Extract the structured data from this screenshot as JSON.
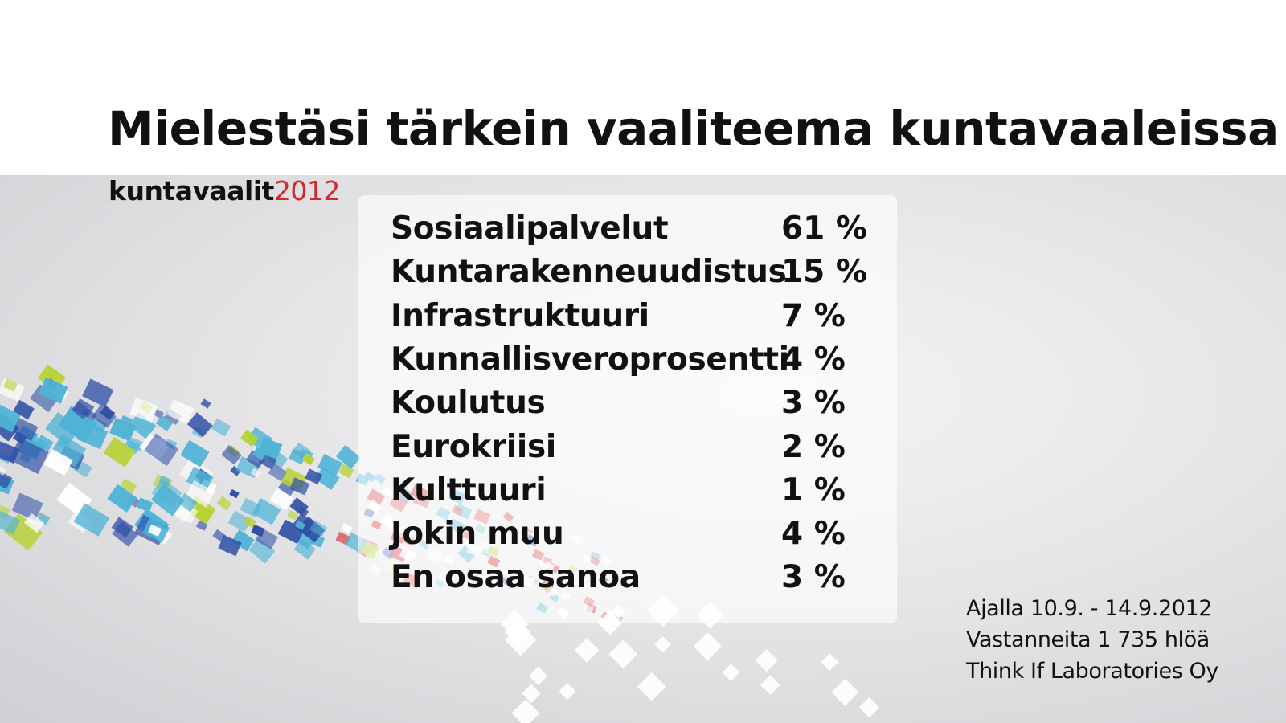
{
  "title": "Mielestäsi tärkein vaaliteema kuntavaaleissa",
  "brand": {
    "word": "kuntavaalit",
    "year": "2012",
    "year_color": "#d4262b"
  },
  "chart_data": {
    "type": "table",
    "title": "Mielestäsi tärkein vaaliteema kuntavaaleissa",
    "rows": [
      {
        "label": "Sosiaalipalvelut",
        "value": "61 %"
      },
      {
        "label": "Kuntarakenneuudistus",
        "value": "15 %"
      },
      {
        "label": "Infrastruktuuri",
        "value": "7 %"
      },
      {
        "label": "Kunnallisveroprosentti",
        "value": "4 %"
      },
      {
        "label": "Koulutus",
        "value": "3 %"
      },
      {
        "label": "Eurokriisi",
        "value": "2 %"
      },
      {
        "label": "Kulttuuri",
        "value": "1 %"
      },
      {
        "label": "Jokin muu",
        "value": "4 %"
      },
      {
        "label": "En osaa sanoa",
        "value": "3 %"
      }
    ]
  },
  "footer": {
    "line1": "Ajalla 10.9. - 14.9.2012",
    "line2": "Vastanneita 1 735 hlöä",
    "line3": "Think If Laboratories Oy"
  },
  "colors": {
    "dark_blue": "#2f4fa6",
    "light_blue": "#4fb3d6",
    "lime": "#b6d234",
    "red": "#d4262b"
  }
}
